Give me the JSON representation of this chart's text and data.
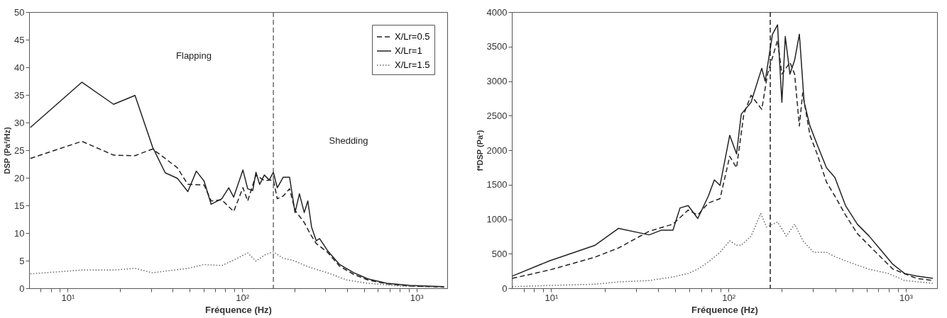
{
  "chart_data": [
    {
      "type": "line",
      "xlabel": "Fréquence (Hz)",
      "ylabel": "DSP (Pa²/Hz)",
      "log": "x",
      "grid": false,
      "legend": "top right",
      "xlim": [
        6,
        1500
      ],
      "ylim": [
        0,
        50
      ],
      "xticks": [
        {
          "value": 7,
          "label": null
        },
        {
          "value": 8,
          "label": null
        },
        {
          "value": 9,
          "label": null
        },
        {
          "value": 10,
          "label": "10¹"
        },
        {
          "value": 20,
          "label": null
        },
        {
          "value": 30,
          "label": null
        },
        {
          "value": 40,
          "label": null
        },
        {
          "value": 50,
          "label": null
        },
        {
          "value": 60,
          "label": null
        },
        {
          "value": 70,
          "label": null
        },
        {
          "value": 80,
          "label": null
        },
        {
          "value": 90,
          "label": null
        },
        {
          "value": 100,
          "label": "10²"
        },
        {
          "value": 200,
          "label": null
        },
        {
          "value": 300,
          "label": null
        },
        {
          "value": 400,
          "label": null
        },
        {
          "value": 500,
          "label": null
        },
        {
          "value": 600,
          "label": null
        },
        {
          "value": 700,
          "label": null
        },
        {
          "value": 800,
          "label": null
        },
        {
          "value": 900,
          "label": null
        },
        {
          "value": 1000,
          "label": "10³"
        }
      ],
      "yticks": [
        0,
        5,
        10,
        15,
        20,
        25,
        30,
        35,
        40,
        45,
        50
      ],
      "series": [
        {
          "name": "X/Lr=0.5",
          "color": "#222222",
          "line_style": "dashed",
          "x": [
            6.1,
            12.05,
            18.3,
            24.3,
            30.6,
            36.2,
            42.5,
            48.8,
            60.5,
            66.4,
            76.4,
            89.4,
            101,
            107.6,
            120,
            134,
            151,
            159,
            172,
            187,
            201,
            227,
            245,
            266,
            309,
            362,
            437,
            526,
            676,
            920,
            1440
          ],
          "values": [
            23.5,
            26.6,
            24.1,
            24,
            25.2,
            23.5,
            21.8,
            18.8,
            18.7,
            15.8,
            16,
            13.9,
            18.2,
            15.8,
            20.5,
            19.5,
            19.6,
            16.2,
            16.7,
            18,
            14.1,
            11.9,
            9.9,
            8.1,
            6.5,
            4,
            2.5,
            1.5,
            0.8,
            0.4,
            0.2
          ]
        },
        {
          "name": "X/Lr=1",
          "color": "#222222",
          "line_style": "solid",
          "x": [
            6.1,
            12.05,
            18.3,
            24.3,
            30.6,
            36.2,
            42.5,
            48.8,
            54.6,
            60.5,
            66.4,
            76.4,
            83.8,
            89.4,
            101,
            107.6,
            115,
            120,
            126,
            134,
            143,
            151,
            159,
            172,
            187,
            201,
            213,
            227,
            238,
            250,
            266,
            278,
            309,
            362,
            437,
            526,
            676,
            920,
            1440
          ],
          "values": [
            29.1,
            37.3,
            33.3,
            34.9,
            25.6,
            20.9,
            19.9,
            17.5,
            21.2,
            19.4,
            15.2,
            16.2,
            18.2,
            16.5,
            21.4,
            18,
            17.7,
            21,
            18.8,
            20.5,
            19.6,
            21,
            18.2,
            20.1,
            20.1,
            13.7,
            17.1,
            13.7,
            15.8,
            11.1,
            8.6,
            9,
            6.8,
            4.3,
            2.8,
            1.7,
            0.9,
            0.5,
            0.3
          ]
        },
        {
          "name": "X/Lr=1.5",
          "color": "#666666",
          "line_style": "dotted",
          "x": [
            6.1,
            12.05,
            18.3,
            24.3,
            30.6,
            48.8,
            60.5,
            76.4,
            89.4,
            107.6,
            120,
            134,
            151,
            172,
            194,
            243,
            309,
            398,
            526,
            810,
            1440
          ],
          "values": [
            2.6,
            3.3,
            3.3,
            3.6,
            2.8,
            3.6,
            4.3,
            4.1,
            5.1,
            6.4,
            4.9,
            6,
            6.6,
            5.4,
            5.1,
            3.8,
            2.8,
            1.5,
            0.9,
            0.4,
            0.2
          ]
        }
      ],
      "ref_lines": [
        {
          "axis": "x",
          "value": 151,
          "color": "#555555",
          "line_style": "dashed"
        }
      ],
      "annotations": [
        "Flapping",
        "Shedding"
      ]
    },
    {
      "type": "line",
      "xlabel": "Fréquence (Hz)",
      "ylabel": "f*DSP (Pa²)",
      "log": "x",
      "grid": false,
      "xlim": [
        6,
        1500
      ],
      "ylim": [
        0,
        4000
      ],
      "xticks": [
        {
          "value": 7,
          "label": null
        },
        {
          "value": 8,
          "label": null
        },
        {
          "value": 9,
          "label": null
        },
        {
          "value": 10,
          "label": "10¹"
        },
        {
          "value": 20,
          "label": null
        },
        {
          "value": 30,
          "label": null
        },
        {
          "value": 40,
          "label": null
        },
        {
          "value": 50,
          "label": null
        },
        {
          "value": 60,
          "label": null
        },
        {
          "value": 70,
          "label": null
        },
        {
          "value": 80,
          "label": null
        },
        {
          "value": 90,
          "label": null
        },
        {
          "value": 100,
          "label": "10²"
        },
        {
          "value": 200,
          "label": null
        },
        {
          "value": 300,
          "label": null
        },
        {
          "value": 400,
          "label": null
        },
        {
          "value": 500,
          "label": null
        },
        {
          "value": 600,
          "label": null
        },
        {
          "value": 700,
          "label": null
        },
        {
          "value": 800,
          "label": null
        },
        {
          "value": 900,
          "label": null
        },
        {
          "value": 1000,
          "label": "10³"
        }
      ],
      "yticks": [
        0,
        500,
        1000,
        1500,
        2000,
        2500,
        3000,
        3500,
        4000
      ],
      "series": [
        {
          "color": "#222222",
          "line_style": "dashed",
          "x": [
            6.03,
            9.8,
            17.6,
            24,
            35.7,
            48.6,
            59.2,
            67.1,
            77,
            89.6,
            101.6,
            111,
            122,
            134,
            154,
            166,
            189,
            200,
            222,
            236,
            251,
            262,
            288,
            316,
            357,
            398,
            457,
            533,
            621,
            724,
            845,
            1148,
            1422
          ],
          "values": [
            143,
            265,
            449,
            584,
            826,
            928,
            1132,
            1061,
            1234,
            1298,
            1910,
            1744,
            2522,
            2795,
            2591,
            3101,
            3590,
            3101,
            3270,
            3101,
            2350,
            2829,
            2216,
            1946,
            1536,
            1336,
            1061,
            791,
            619,
            449,
            278,
            143,
            112
          ]
        },
        {
          "color": "#222222",
          "line_style": "solid",
          "x": [
            6.03,
            9.8,
            17.6,
            24,
            35.7,
            41.7,
            48.6,
            53.3,
            59.2,
            67.1,
            77,
            83.2,
            89.6,
            101.6,
            111,
            118,
            134,
            154,
            161,
            177,
            189,
            200,
            209,
            222,
            236,
            251,
            267,
            288,
            316,
            357,
            398,
            457,
            533,
            621,
            724,
            845,
            984,
            1148,
            1422
          ],
          "values": [
            176,
            398,
            620,
            867,
            773,
            840,
            840,
            1163,
            1197,
            1010,
            1336,
            1570,
            1490,
            2216,
            1946,
            2522,
            2693,
            3186,
            2999,
            3679,
            3815,
            2693,
            3645,
            3101,
            3305,
            3679,
            2693,
            2350,
            2081,
            1744,
            1604,
            1197,
            927,
            755,
            551,
            347,
            214,
            176,
            143
          ]
        },
        {
          "color": "#666666",
          "line_style": "dotted",
          "x": [
            6.03,
            9.8,
            17.6,
            24,
            35.7,
            48.6,
            59.2,
            67.1,
            77,
            89.6,
            101.6,
            111,
            118,
            134,
            152,
            164,
            189,
            212,
            236,
            264,
            302,
            357,
            405,
            480,
            621,
            797,
            984,
            1422
          ],
          "values": [
            23,
            41,
            58,
            92,
            112,
            163,
            214,
            278,
            380,
            520,
            687,
            622,
            622,
            755,
            1081,
            887,
            959,
            755,
            928,
            683,
            520,
            520,
            449,
            377,
            275,
            214,
            112,
            71
          ]
        }
      ],
      "ref_lines": [
        {
          "axis": "x",
          "value": 172,
          "color": "#000000",
          "line_style": "dashed"
        }
      ]
    }
  ]
}
